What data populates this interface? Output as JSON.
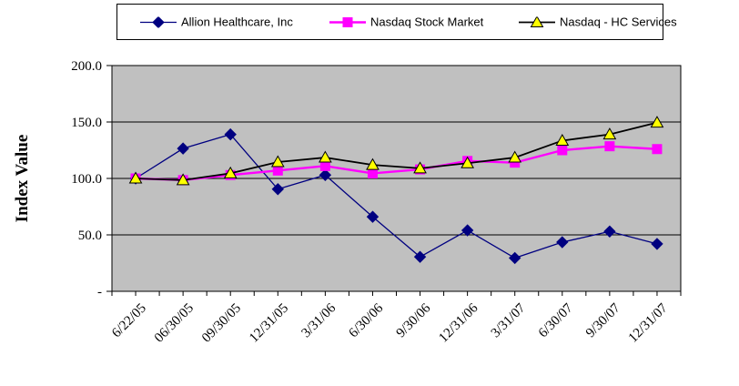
{
  "chart_data": {
    "type": "line",
    "title": "",
    "ylabel": "Index Value",
    "xlabel": "",
    "ylim": [
      0,
      200
    ],
    "gridlines": [
      50,
      100,
      150,
      200
    ],
    "grid_on": true,
    "legend_position": "top",
    "plot_bg_color": "#c0c0c0",
    "grid_color": "#000000",
    "axis_color": "#000000",
    "y_ticks": [
      {
        "value": 200,
        "label": "200.0"
      },
      {
        "value": 150,
        "label": "150.0"
      },
      {
        "value": 100,
        "label": "100.0"
      },
      {
        "value": 50,
        "label": "50.0"
      },
      {
        "value": 0,
        "label": "-"
      }
    ],
    "categories": [
      "6/22/05",
      "06/30/05",
      "09/30/05",
      "12/31/05",
      "3/31/06",
      "6/30/06",
      "9/30/06",
      "12/31/06",
      "3/31/07",
      "6/30/07",
      "9/30/07",
      "12/31/07"
    ],
    "series": [
      {
        "name": "Allion Healthcare, Inc",
        "color": "#000080",
        "marker": "diamond",
        "marker_color": "#000080",
        "values": [
          100,
          126.5,
          139,
          90.5,
          103,
          66,
          30.5,
          54,
          29.5,
          43.5,
          53,
          42
        ]
      },
      {
        "name": "Nasdaq Stock Market",
        "color": "#ff00ff",
        "marker": "square",
        "marker_color": "#ff00ff",
        "values": [
          100,
          98.5,
          103,
          107,
          111,
          104.5,
          108,
          115.5,
          114,
          125,
          128.5,
          126
        ]
      },
      {
        "name": "Nasdaq - HC Services",
        "color": "#000000",
        "marker": "triangle",
        "marker_color": "#ffff00",
        "values": [
          100,
          98.5,
          104.5,
          114.5,
          118.5,
          112,
          109,
          113.5,
          118.5,
          133.5,
          139,
          149.5
        ]
      }
    ]
  }
}
